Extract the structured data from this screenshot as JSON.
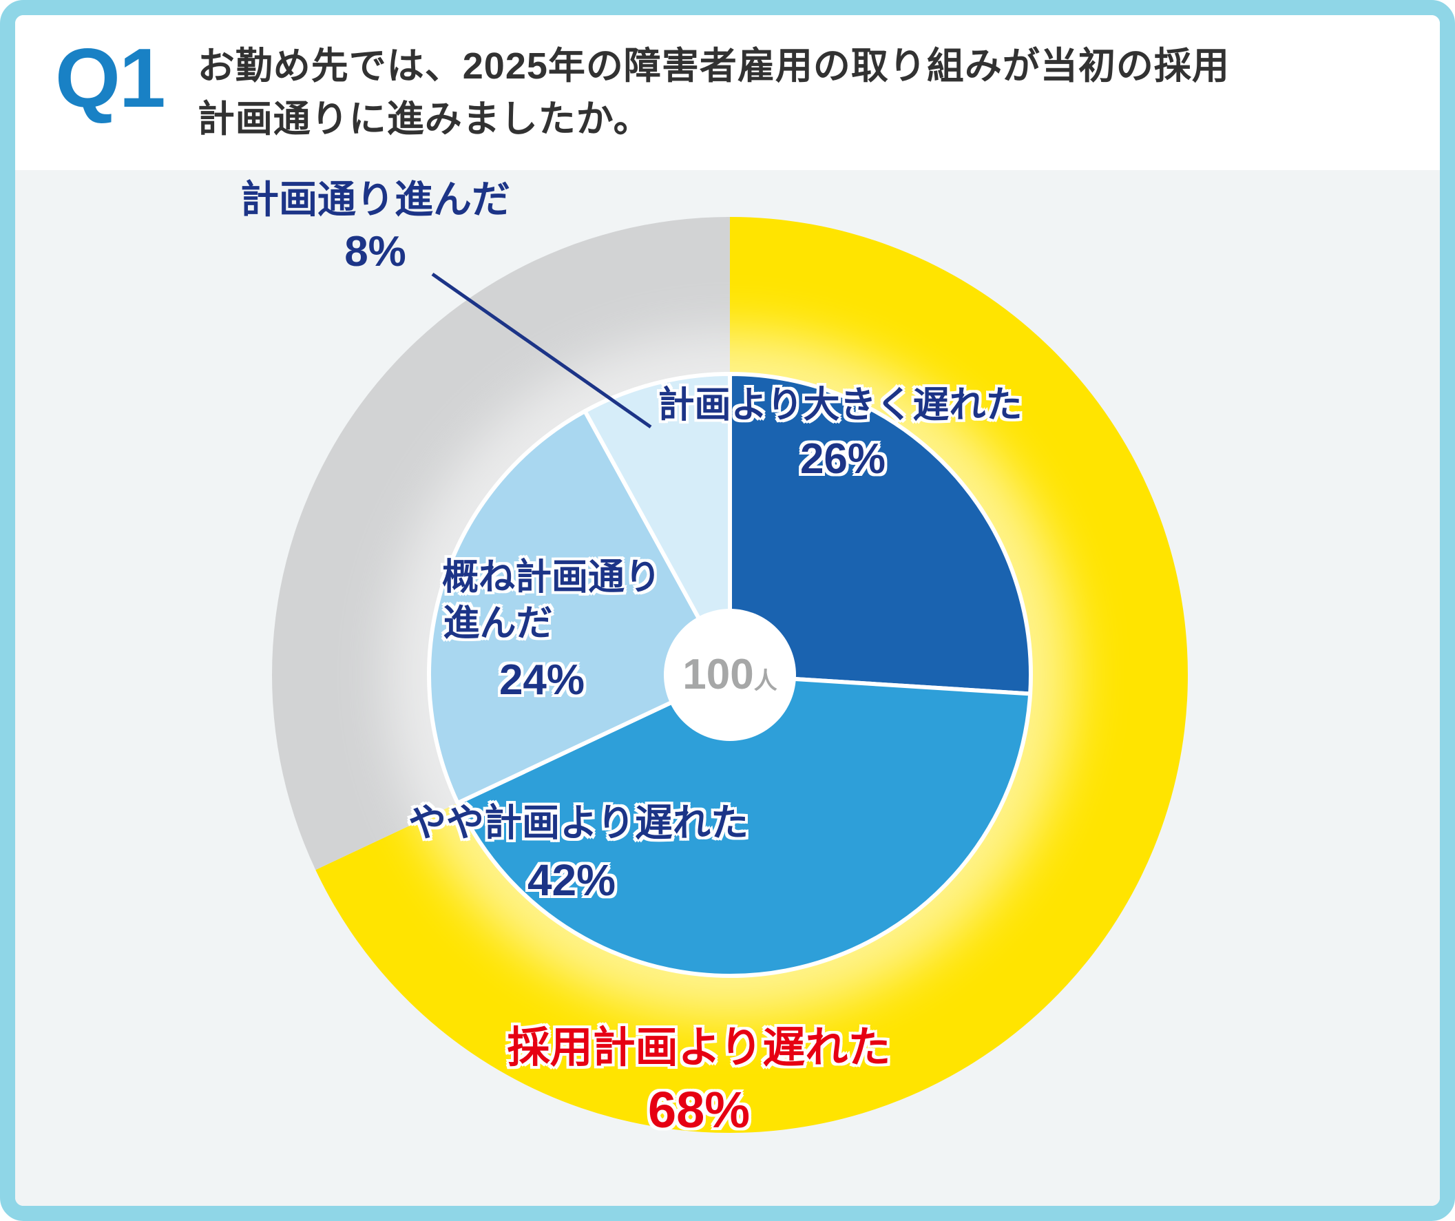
{
  "header": {
    "q_label": "Q1",
    "question_line1": "お勤め先では、2025年の障害者雇用の取り組みが当初の採用",
    "question_line2": "計画通りに進みましたか。"
  },
  "colors": {
    "frame": "#8fd6e7",
    "q_blue": "#1981c5",
    "navy": "#1c3487",
    "red": "#e60012",
    "panel_bg": "#f1f4f5",
    "center_gray": "#a6a7a7"
  },
  "chart_data": {
    "type": "pie",
    "title": "お勤め先では、2025年の障害者雇用の取り組みが当初の採用計画通りに進みましたか。",
    "total_respondents": 100,
    "start_angle_deg": 0,
    "clockwise": true,
    "inner_series": [
      {
        "label": "計画より大きく遅れた",
        "value": 26,
        "color": "#1a63b0"
      },
      {
        "label": "やや計画より遅れた",
        "value": 42,
        "color": "#2e9fd9"
      },
      {
        "label": "概ね計画通り進んだ",
        "value": 24,
        "color": "#a9d7f0"
      },
      {
        "label": "計画通り進んだ",
        "value": 8,
        "color": "#d6edf9"
      }
    ],
    "outer_series": [
      {
        "label": "採用計画より遅れた",
        "value": 68,
        "color": "#ffe400"
      },
      {
        "label": "",
        "value": 32,
        "color": "#d2d3d4"
      }
    ]
  },
  "labels": {
    "slice_delayed_major": {
      "text": "計画より大きく遅れた",
      "value": "26%"
    },
    "slice_delayed_somewhat": {
      "text": "やや計画より遅れた",
      "value": "42%"
    },
    "slice_mostly_on_plan": {
      "line1": "概ね計画通り",
      "line2": "進んだ",
      "value": "24%"
    },
    "slice_on_plan": {
      "text": "計画通り進んだ",
      "value": "8%"
    },
    "outer_delayed": {
      "text": "採用計画より遅れた",
      "value": "68%"
    },
    "center": {
      "count": "100",
      "unit": "人"
    }
  }
}
